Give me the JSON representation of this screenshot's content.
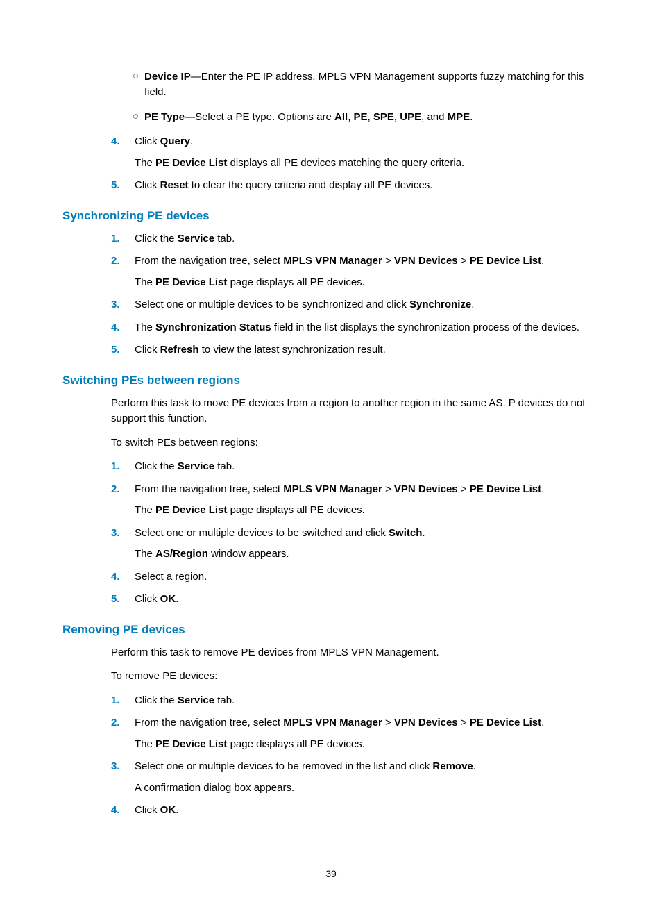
{
  "colors": {
    "heading": "#007dba",
    "list_number": "#007dba",
    "text": "#000000",
    "background": "#ffffff"
  },
  "typography": {
    "body_fontsize": 15,
    "heading_fontsize": 17,
    "line_height": 1.5
  },
  "page_number": "39",
  "top_sub_bullets": [
    {
      "lead_bold": "Device IP",
      "rest": "—Enter the PE IP address. MPLS VPN Management supports fuzzy matching for this field."
    },
    {
      "lead_bold": "PE Type",
      "pre": "—Select a PE type. Options are ",
      "opts": [
        "All",
        "PE",
        "SPE",
        "UPE",
        "MPE"
      ],
      "tail": "."
    }
  ],
  "top_steps": [
    {
      "n": "4.",
      "seq": [
        {
          "t": "Click "
        },
        {
          "b": "Query"
        },
        {
          "t": "."
        }
      ],
      "follow_seq": [
        {
          "t": "The "
        },
        {
          "b": "PE Device List"
        },
        {
          "t": " displays all PE devices matching the query criteria."
        }
      ]
    },
    {
      "n": "5.",
      "seq": [
        {
          "t": "Click "
        },
        {
          "b": "Reset"
        },
        {
          "t": " to clear the query criteria and display all PE devices."
        }
      ]
    }
  ],
  "sections": [
    {
      "heading": "Synchronizing PE devices",
      "intro": [],
      "steps": [
        {
          "n": "1.",
          "seq": [
            {
              "t": "Click the "
            },
            {
              "b": "Service"
            },
            {
              "t": " tab."
            }
          ]
        },
        {
          "n": "2.",
          "seq": [
            {
              "t": "From the navigation tree, select "
            },
            {
              "b": "MPLS VPN Manager"
            },
            {
              "t": " > "
            },
            {
              "b": "VPN Devices"
            },
            {
              "t": " > "
            },
            {
              "b": "PE Device List"
            },
            {
              "t": "."
            }
          ],
          "follow_seq": [
            {
              "t": "The "
            },
            {
              "b": "PE Device List"
            },
            {
              "t": " page displays all PE devices."
            }
          ]
        },
        {
          "n": "3.",
          "seq": [
            {
              "t": "Select one or multiple devices to be synchronized and click "
            },
            {
              "b": "Synchronize"
            },
            {
              "t": "."
            }
          ]
        },
        {
          "n": "4.",
          "seq": [
            {
              "t": "The "
            },
            {
              "b": "Synchronization Status"
            },
            {
              "t": " field in the list displays the synchronization process of the devices."
            }
          ]
        },
        {
          "n": "5.",
          "seq": [
            {
              "t": "Click "
            },
            {
              "b": "Refresh"
            },
            {
              "t": " to view the latest synchronization result."
            }
          ]
        }
      ]
    },
    {
      "heading": "Switching PEs between regions",
      "intro": [
        "Perform this task to move PE devices from a region to another region in the same AS. P devices do not support this function.",
        "To switch PEs between regions:"
      ],
      "steps": [
        {
          "n": "1.",
          "seq": [
            {
              "t": "Click the "
            },
            {
              "b": "Service"
            },
            {
              "t": " tab."
            }
          ]
        },
        {
          "n": "2.",
          "seq": [
            {
              "t": "From the navigation tree, select "
            },
            {
              "b": "MPLS VPN Manager"
            },
            {
              "t": " > "
            },
            {
              "b": "VPN Devices"
            },
            {
              "t": " > "
            },
            {
              "b": "PE Device List"
            },
            {
              "t": "."
            }
          ],
          "follow_seq": [
            {
              "t": "The "
            },
            {
              "b": "PE Device List"
            },
            {
              "t": " page displays all PE devices."
            }
          ]
        },
        {
          "n": "3.",
          "seq": [
            {
              "t": "Select one or multiple devices to be switched and click "
            },
            {
              "b": "Switch"
            },
            {
              "t": "."
            }
          ],
          "follow_seq": [
            {
              "t": "The "
            },
            {
              "b": "AS/Region"
            },
            {
              "t": " window appears."
            }
          ]
        },
        {
          "n": "4.",
          "seq": [
            {
              "t": "Select a region."
            }
          ]
        },
        {
          "n": "5.",
          "seq": [
            {
              "t": "Click "
            },
            {
              "b": "OK"
            },
            {
              "t": "."
            }
          ]
        }
      ]
    },
    {
      "heading": "Removing PE devices",
      "intro": [
        "Perform this task to remove PE devices from MPLS VPN Management.",
        "To remove PE devices:"
      ],
      "steps": [
        {
          "n": "1.",
          "seq": [
            {
              "t": "Click the "
            },
            {
              "b": "Service"
            },
            {
              "t": " tab."
            }
          ]
        },
        {
          "n": "2.",
          "seq": [
            {
              "t": "From the navigation tree, select "
            },
            {
              "b": "MPLS VPN Manager"
            },
            {
              "t": " > "
            },
            {
              "b": "VPN Devices"
            },
            {
              "t": " > "
            },
            {
              "b": "PE Device List"
            },
            {
              "t": "."
            }
          ],
          "follow_seq": [
            {
              "t": "The "
            },
            {
              "b": "PE Device List"
            },
            {
              "t": " page displays all PE devices."
            }
          ]
        },
        {
          "n": "3.",
          "seq": [
            {
              "t": "Select one or multiple devices to be removed in the list and click "
            },
            {
              "b": "Remove"
            },
            {
              "t": "."
            }
          ],
          "follow_seq": [
            {
              "t": "A confirmation dialog box appears."
            }
          ]
        },
        {
          "n": "4.",
          "seq": [
            {
              "t": "Click "
            },
            {
              "b": "OK"
            },
            {
              "t": "."
            }
          ]
        }
      ]
    }
  ]
}
